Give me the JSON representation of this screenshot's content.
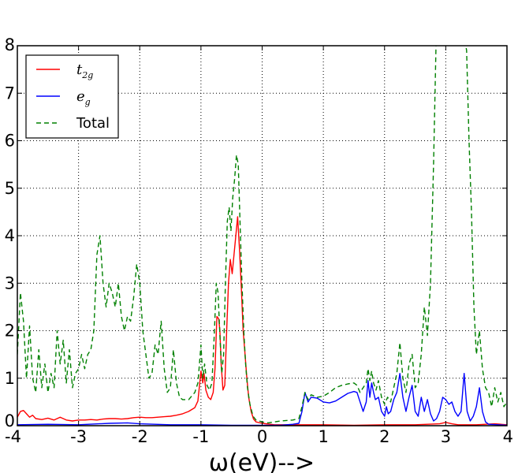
{
  "chart_data": {
    "type": "line",
    "xlabel": "ω(eV)-->",
    "ylabel": "",
    "title": "",
    "xlim": [
      -4,
      4
    ],
    "ylim": [
      0,
      8
    ],
    "xticks": [
      -4,
      -3,
      -2,
      -1,
      0,
      1,
      2,
      3,
      4
    ],
    "yticks": [
      0,
      1,
      2,
      3,
      4,
      5,
      6,
      7,
      8
    ],
    "grid": true,
    "legend_position": "top-left",
    "series": [
      {
        "name": "t2g",
        "legend_base": "t",
        "legend_sub": "2g",
        "color": "#ff0000",
        "dash": "solid",
        "points": [
          [
            -4.0,
            0.18
          ],
          [
            -3.95,
            0.3
          ],
          [
            -3.9,
            0.32
          ],
          [
            -3.85,
            0.25
          ],
          [
            -3.8,
            0.18
          ],
          [
            -3.75,
            0.22
          ],
          [
            -3.7,
            0.15
          ],
          [
            -3.6,
            0.13
          ],
          [
            -3.5,
            0.16
          ],
          [
            -3.4,
            0.12
          ],
          [
            -3.3,
            0.18
          ],
          [
            -3.2,
            0.12
          ],
          [
            -3.1,
            0.1
          ],
          [
            -3.0,
            0.12
          ],
          [
            -2.9,
            0.12
          ],
          [
            -2.8,
            0.13
          ],
          [
            -2.7,
            0.12
          ],
          [
            -2.6,
            0.14
          ],
          [
            -2.5,
            0.15
          ],
          [
            -2.4,
            0.15
          ],
          [
            -2.3,
            0.14
          ],
          [
            -2.2,
            0.15
          ],
          [
            -2.1,
            0.17
          ],
          [
            -2.0,
            0.18
          ],
          [
            -1.9,
            0.17
          ],
          [
            -1.8,
            0.17
          ],
          [
            -1.7,
            0.18
          ],
          [
            -1.6,
            0.19
          ],
          [
            -1.5,
            0.2
          ],
          [
            -1.4,
            0.22
          ],
          [
            -1.3,
            0.25
          ],
          [
            -1.2,
            0.3
          ],
          [
            -1.1,
            0.38
          ],
          [
            -1.05,
            0.52
          ],
          [
            -1.0,
            1.15
          ],
          [
            -0.97,
            0.9
          ],
          [
            -0.95,
            1.1
          ],
          [
            -0.92,
            0.75
          ],
          [
            -0.88,
            0.6
          ],
          [
            -0.84,
            0.55
          ],
          [
            -0.8,
            0.7
          ],
          [
            -0.77,
            1.2
          ],
          [
            -0.74,
            2.3
          ],
          [
            -0.71,
            2.25
          ],
          [
            -0.69,
            2.0
          ],
          [
            -0.67,
            1.3
          ],
          [
            -0.64,
            0.75
          ],
          [
            -0.61,
            0.85
          ],
          [
            -0.58,
            2.0
          ],
          [
            -0.55,
            3.0
          ],
          [
            -0.52,
            3.5
          ],
          [
            -0.49,
            3.2
          ],
          [
            -0.46,
            3.6
          ],
          [
            -0.43,
            4.0
          ],
          [
            -0.4,
            4.4
          ],
          [
            -0.37,
            3.7
          ],
          [
            -0.34,
            2.9
          ],
          [
            -0.31,
            2.0
          ],
          [
            -0.28,
            1.5
          ],
          [
            -0.25,
            1.0
          ],
          [
            -0.22,
            0.6
          ],
          [
            -0.18,
            0.3
          ],
          [
            -0.14,
            0.14
          ],
          [
            -0.1,
            0.08
          ],
          [
            0.0,
            0.05
          ],
          [
            0.2,
            0.02
          ],
          [
            0.5,
            0.02
          ],
          [
            1.0,
            0.02
          ],
          [
            1.5,
            0.01
          ],
          [
            2.0,
            0.02
          ],
          [
            2.5,
            0.02
          ],
          [
            2.9,
            0.04
          ],
          [
            3.0,
            0.07
          ],
          [
            3.1,
            0.04
          ],
          [
            3.2,
            0.02
          ],
          [
            3.5,
            0.02
          ],
          [
            3.8,
            0.04
          ],
          [
            4.0,
            0.02
          ]
        ]
      },
      {
        "name": "eg",
        "legend_base": "e",
        "legend_sub": "g",
        "color": "#0000ff",
        "dash": "solid",
        "points": [
          [
            -4.0,
            0.02
          ],
          [
            -3.5,
            0.03
          ],
          [
            -3.0,
            0.02
          ],
          [
            -2.5,
            0.05
          ],
          [
            -2.2,
            0.06
          ],
          [
            -2.0,
            0.04
          ],
          [
            -1.5,
            0.02
          ],
          [
            -1.0,
            0.02
          ],
          [
            -0.5,
            0.01
          ],
          [
            0.0,
            0.01
          ],
          [
            0.3,
            0.01
          ],
          [
            0.5,
            0.03
          ],
          [
            0.6,
            0.05
          ],
          [
            0.65,
            0.3
          ],
          [
            0.7,
            0.7
          ],
          [
            0.75,
            0.5
          ],
          [
            0.8,
            0.6
          ],
          [
            0.9,
            0.58
          ],
          [
            1.0,
            0.5
          ],
          [
            1.1,
            0.48
          ],
          [
            1.2,
            0.52
          ],
          [
            1.3,
            0.6
          ],
          [
            1.4,
            0.68
          ],
          [
            1.5,
            0.72
          ],
          [
            1.55,
            0.7
          ],
          [
            1.6,
            0.5
          ],
          [
            1.65,
            0.3
          ],
          [
            1.7,
            0.5
          ],
          [
            1.73,
            0.95
          ],
          [
            1.76,
            0.6
          ],
          [
            1.79,
            0.9
          ],
          [
            1.82,
            0.7
          ],
          [
            1.85,
            0.55
          ],
          [
            1.9,
            0.6
          ],
          [
            1.95,
            0.3
          ],
          [
            2.0,
            0.2
          ],
          [
            2.03,
            0.4
          ],
          [
            2.06,
            0.25
          ],
          [
            2.1,
            0.3
          ],
          [
            2.15,
            0.55
          ],
          [
            2.2,
            0.7
          ],
          [
            2.25,
            1.1
          ],
          [
            2.3,
            0.6
          ],
          [
            2.35,
            0.3
          ],
          [
            2.4,
            0.6
          ],
          [
            2.45,
            0.85
          ],
          [
            2.5,
            0.3
          ],
          [
            2.55,
            0.2
          ],
          [
            2.6,
            0.6
          ],
          [
            2.65,
            0.3
          ],
          [
            2.7,
            0.55
          ],
          [
            2.75,
            0.25
          ],
          [
            2.8,
            0.1
          ],
          [
            2.85,
            0.15
          ],
          [
            2.9,
            0.3
          ],
          [
            2.95,
            0.6
          ],
          [
            3.0,
            0.55
          ],
          [
            3.05,
            0.45
          ],
          [
            3.1,
            0.5
          ],
          [
            3.15,
            0.3
          ],
          [
            3.2,
            0.2
          ],
          [
            3.25,
            0.3
          ],
          [
            3.3,
            1.1
          ],
          [
            3.35,
            0.3
          ],
          [
            3.4,
            0.1
          ],
          [
            3.45,
            0.2
          ],
          [
            3.5,
            0.4
          ],
          [
            3.55,
            0.8
          ],
          [
            3.6,
            0.3
          ],
          [
            3.65,
            0.08
          ],
          [
            3.7,
            0.03
          ],
          [
            4.0,
            0.01
          ]
        ]
      },
      {
        "name": "Total",
        "legend_base": "Total",
        "legend_sub": "",
        "color": "#008000",
        "dash": "dashed",
        "points": [
          [
            -4.0,
            1.5
          ],
          [
            -3.95,
            2.8
          ],
          [
            -3.9,
            2.2
          ],
          [
            -3.85,
            1.0
          ],
          [
            -3.8,
            2.1
          ],
          [
            -3.75,
            1.0
          ],
          [
            -3.7,
            0.7
          ],
          [
            -3.65,
            1.6
          ],
          [
            -3.6,
            0.8
          ],
          [
            -3.55,
            1.3
          ],
          [
            -3.5,
            0.7
          ],
          [
            -3.45,
            1.1
          ],
          [
            -3.4,
            0.8
          ],
          [
            -3.35,
            2.0
          ],
          [
            -3.3,
            1.3
          ],
          [
            -3.25,
            1.8
          ],
          [
            -3.2,
            0.9
          ],
          [
            -3.15,
            1.6
          ],
          [
            -3.1,
            0.8
          ],
          [
            -3.05,
            1.1
          ],
          [
            -3.0,
            1.2
          ],
          [
            -2.95,
            1.5
          ],
          [
            -2.9,
            1.2
          ],
          [
            -2.85,
            1.5
          ],
          [
            -2.8,
            1.6
          ],
          [
            -2.75,
            2.0
          ],
          [
            -2.7,
            3.6
          ],
          [
            -2.65,
            4.0
          ],
          [
            -2.6,
            3.0
          ],
          [
            -2.55,
            2.5
          ],
          [
            -2.5,
            3.0
          ],
          [
            -2.45,
            2.8
          ],
          [
            -2.4,
            2.5
          ],
          [
            -2.35,
            3.0
          ],
          [
            -2.3,
            2.3
          ],
          [
            -2.25,
            2.0
          ],
          [
            -2.2,
            2.3
          ],
          [
            -2.15,
            2.2
          ],
          [
            -2.1,
            2.7
          ],
          [
            -2.05,
            3.4
          ],
          [
            -2.0,
            3.0
          ],
          [
            -1.95,
            2.0
          ],
          [
            -1.9,
            1.5
          ],
          [
            -1.85,
            1.0
          ],
          [
            -1.8,
            1.1
          ],
          [
            -1.75,
            1.7
          ],
          [
            -1.7,
            1.5
          ],
          [
            -1.65,
            2.2
          ],
          [
            -1.6,
            1.2
          ],
          [
            -1.55,
            0.7
          ],
          [
            -1.5,
            0.8
          ],
          [
            -1.45,
            1.6
          ],
          [
            -1.4,
            0.9
          ],
          [
            -1.35,
            0.6
          ],
          [
            -1.3,
            0.55
          ],
          [
            -1.2,
            0.55
          ],
          [
            -1.1,
            0.7
          ],
          [
            -1.05,
            0.9
          ],
          [
            -1.0,
            1.7
          ],
          [
            -0.97,
            1.0
          ],
          [
            -0.94,
            1.3
          ],
          [
            -0.9,
            0.85
          ],
          [
            -0.86,
            0.75
          ],
          [
            -0.82,
            0.9
          ],
          [
            -0.78,
            2.0
          ],
          [
            -0.75,
            3.0
          ],
          [
            -0.72,
            2.8
          ],
          [
            -0.69,
            1.9
          ],
          [
            -0.66,
            1.1
          ],
          [
            -0.63,
            1.5
          ],
          [
            -0.6,
            3.0
          ],
          [
            -0.57,
            4.3
          ],
          [
            -0.54,
            4.6
          ],
          [
            -0.51,
            4.1
          ],
          [
            -0.48,
            4.8
          ],
          [
            -0.45,
            5.2
          ],
          [
            -0.42,
            5.7
          ],
          [
            -0.39,
            5.5
          ],
          [
            -0.36,
            4.2
          ],
          [
            -0.33,
            3.0
          ],
          [
            -0.3,
            2.0
          ],
          [
            -0.27,
            1.3
          ],
          [
            -0.24,
            0.8
          ],
          [
            -0.2,
            0.45
          ],
          [
            -0.15,
            0.2
          ],
          [
            -0.1,
            0.12
          ],
          [
            0.0,
            0.08
          ],
          [
            0.1,
            0.06
          ],
          [
            0.3,
            0.1
          ],
          [
            0.5,
            0.12
          ],
          [
            0.6,
            0.15
          ],
          [
            0.65,
            0.4
          ],
          [
            0.7,
            0.7
          ],
          [
            0.75,
            0.55
          ],
          [
            0.8,
            0.65
          ],
          [
            0.9,
            0.6
          ],
          [
            1.0,
            0.62
          ],
          [
            1.1,
            0.7
          ],
          [
            1.2,
            0.8
          ],
          [
            1.3,
            0.85
          ],
          [
            1.4,
            0.88
          ],
          [
            1.5,
            0.9
          ],
          [
            1.55,
            0.85
          ],
          [
            1.6,
            0.7
          ],
          [
            1.65,
            0.8
          ],
          [
            1.7,
            0.9
          ],
          [
            1.73,
            1.2
          ],
          [
            1.76,
            0.95
          ],
          [
            1.79,
            1.15
          ],
          [
            1.82,
            0.9
          ],
          [
            1.86,
            0.75
          ],
          [
            1.9,
            0.95
          ],
          [
            1.95,
            0.6
          ],
          [
            2.0,
            0.45
          ],
          [
            2.05,
            0.6
          ],
          [
            2.1,
            0.5
          ],
          [
            2.15,
            0.8
          ],
          [
            2.2,
            1.1
          ],
          [
            2.25,
            1.75
          ],
          [
            2.3,
            1.0
          ],
          [
            2.35,
            0.7
          ],
          [
            2.4,
            1.3
          ],
          [
            2.45,
            1.5
          ],
          [
            2.5,
            0.8
          ],
          [
            2.55,
            0.9
          ],
          [
            2.6,
            1.5
          ],
          [
            2.65,
            2.5
          ],
          [
            2.7,
            1.9
          ],
          [
            2.75,
            3.0
          ],
          [
            2.8,
            5.5
          ],
          [
            2.84,
            8.0
          ],
          [
            2.9,
            8.2
          ],
          [
            3.3,
            8.2
          ],
          [
            3.34,
            7.9
          ],
          [
            3.38,
            6.0
          ],
          [
            3.42,
            4.5
          ],
          [
            3.46,
            2.5
          ],
          [
            3.5,
            1.5
          ],
          [
            3.55,
            2.0
          ],
          [
            3.6,
            1.2
          ],
          [
            3.65,
            0.8
          ],
          [
            3.7,
            0.7
          ],
          [
            3.75,
            0.4
          ],
          [
            3.8,
            0.8
          ],
          [
            3.85,
            0.5
          ],
          [
            3.9,
            0.7
          ],
          [
            3.95,
            0.4
          ],
          [
            4.0,
            0.5
          ]
        ]
      }
    ]
  }
}
